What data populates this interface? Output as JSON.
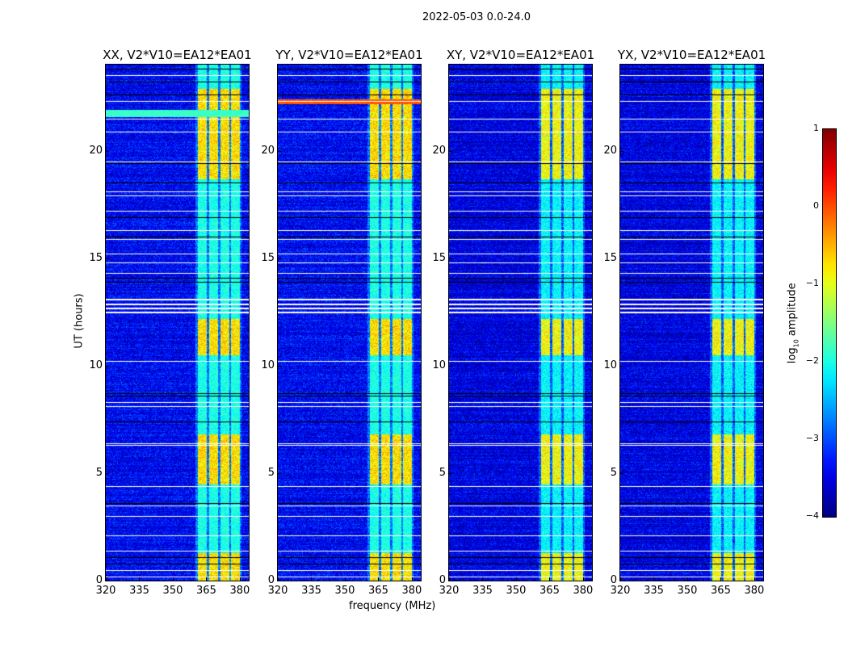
{
  "chart_data": {
    "type": "heatmap",
    "title": "2022-05-03 0.0-24.0",
    "xlabel": "frequency (MHz)",
    "ylabel": "UT (hours)",
    "xlim": [
      320,
      384
    ],
    "ylim": [
      0,
      24
    ],
    "xticks": [
      "320",
      "335",
      "350",
      "365",
      "380"
    ],
    "yticks": [
      "0",
      "5",
      "10",
      "15",
      "20"
    ],
    "panels": [
      {
        "title": "XX, V2*V10=EA12*EA01",
        "strong_extra": [
          21.6,
          21.9
        ]
      },
      {
        "title": "YY, V2*V10=EA12*EA01",
        "strong_extra": [
          22.2,
          22.4
        ]
      },
      {
        "title": "XY, V2*V10=EA12*EA01",
        "strong_extra": null
      },
      {
        "title": "YX, V2*V10=EA12*EA01",
        "strong_extra": null
      }
    ],
    "background_log_amplitude": -3.4,
    "rfi_subbands_mhz": [
      [
        361,
        365
      ],
      [
        366,
        370
      ],
      [
        371,
        375
      ],
      [
        376,
        380
      ]
    ],
    "rfi_log_amplitude_range": [
      -2.0,
      -0.3
    ],
    "rfi_bright_periods_ut": [
      [
        0,
        1.3
      ],
      [
        4.5,
        6.8
      ],
      [
        10.5,
        12.2
      ],
      [
        18.7,
        22.9
      ]
    ],
    "flagged_rows_ut": [
      0.2,
      0.5,
      1.4,
      2.1,
      3.0,
      3.5,
      4.4,
      6.3,
      6.4,
      8.1,
      8.3,
      10.2,
      12.5,
      12.7,
      12.9,
      13.1,
      14.3,
      14.8,
      15.2,
      15.9,
      16.3,
      17.2,
      17.9,
      18.1,
      19.5,
      20.9,
      21.5,
      22.3,
      23.5
    ],
    "dark_rows_ut": [
      0.8,
      1.1,
      3.6,
      7.4,
      8.6,
      8.7,
      13.9,
      14.1,
      16.0,
      16.9,
      18.5,
      19.4,
      22.6,
      23.2,
      23.8
    ],
    "colorbar": {
      "label": "log10 amplitude",
      "label_main": "log",
      "label_sub": "10",
      "label_rest": " amplitude",
      "range": [
        -4,
        1
      ],
      "ticks": [
        "1",
        "0",
        "−1",
        "−2",
        "−3",
        "−4"
      ],
      "colormap": "jet"
    }
  }
}
